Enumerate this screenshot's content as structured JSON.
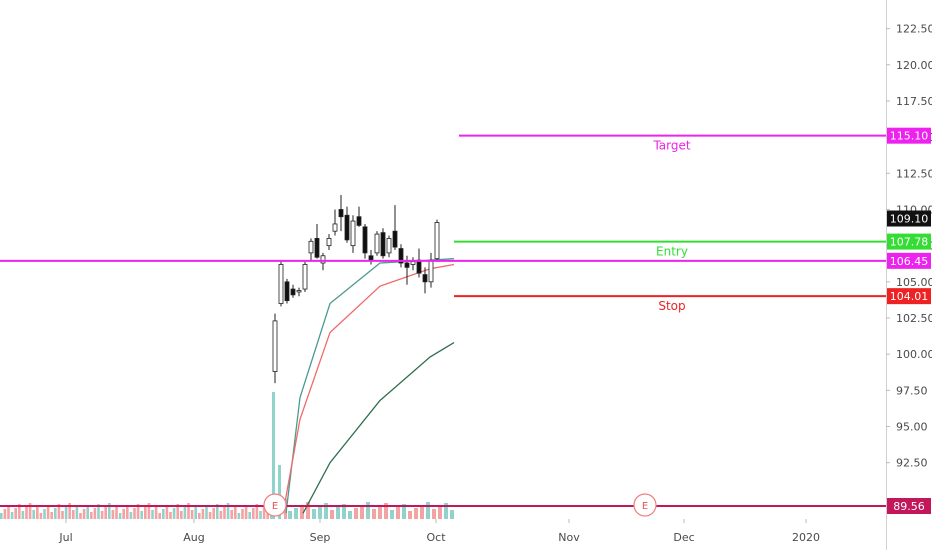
{
  "chart_data": {
    "type": "candlestick",
    "price_axis": {
      "ticks": [
        "122.50",
        "120.00",
        "117.50",
        "115.00",
        "112.50",
        "110.00",
        "107.50",
        "105.00",
        "102.50",
        "100.00",
        "97.50",
        "95.00",
        "92.50"
      ],
      "range": [
        89.0,
        123.5
      ]
    },
    "time_axis": {
      "ticks": [
        "Jul",
        "Aug",
        "Sep",
        "Oct",
        "Nov",
        "Dec",
        "2020"
      ]
    },
    "candles": [
      {
        "o": 98.8,
        "h": 102.8,
        "l": 98.0,
        "c": 102.3
      },
      {
        "o": 103.5,
        "h": 106.4,
        "l": 103.3,
        "c": 106.2
      },
      {
        "o": 105.0,
        "h": 105.2,
        "l": 103.5,
        "c": 103.7
      },
      {
        "o": 104.5,
        "h": 104.8,
        "l": 103.9,
        "c": 104.1
      },
      {
        "o": 104.3,
        "h": 104.6,
        "l": 104.0,
        "c": 104.4
      },
      {
        "o": 104.5,
        "h": 106.4,
        "l": 104.3,
        "c": 106.2
      },
      {
        "o": 107.0,
        "h": 108.0,
        "l": 106.5,
        "c": 107.8
      },
      {
        "o": 108.0,
        "h": 109.0,
        "l": 106.6,
        "c": 106.7
      },
      {
        "o": 106.3,
        "h": 107.0,
        "l": 105.8,
        "c": 106.8
      },
      {
        "o": 107.5,
        "h": 108.3,
        "l": 107.2,
        "c": 108.0
      },
      {
        "o": 108.5,
        "h": 110.0,
        "l": 108.2,
        "c": 109.0
      },
      {
        "o": 110.0,
        "h": 111.0,
        "l": 108.5,
        "c": 109.5
      },
      {
        "o": 109.6,
        "h": 110.2,
        "l": 107.7,
        "c": 107.9
      },
      {
        "o": 107.5,
        "h": 109.6,
        "l": 107.0,
        "c": 109.2
      },
      {
        "o": 109.5,
        "h": 110.2,
        "l": 108.8,
        "c": 108.9
      },
      {
        "o": 108.8,
        "h": 109.0,
        "l": 106.6,
        "c": 107.0
      },
      {
        "o": 106.8,
        "h": 107.2,
        "l": 106.2,
        "c": 106.5
      },
      {
        "o": 107.0,
        "h": 108.5,
        "l": 106.8,
        "c": 108.3
      },
      {
        "o": 108.4,
        "h": 108.7,
        "l": 106.6,
        "c": 106.8
      },
      {
        "o": 107.0,
        "h": 108.2,
        "l": 106.7,
        "c": 108.0
      },
      {
        "o": 108.5,
        "h": 110.3,
        "l": 107.2,
        "c": 107.4
      },
      {
        "o": 107.3,
        "h": 107.6,
        "l": 106.0,
        "c": 106.3
      },
      {
        "o": 106.3,
        "h": 106.8,
        "l": 104.8,
        "c": 106.0
      },
      {
        "o": 106.2,
        "h": 106.7,
        "l": 105.8,
        "c": 106.4
      },
      {
        "o": 106.5,
        "h": 107.3,
        "l": 105.3,
        "c": 105.6
      },
      {
        "o": 105.5,
        "h": 106.0,
        "l": 104.2,
        "c": 105.0
      },
      {
        "o": 105.0,
        "h": 107.0,
        "l": 104.6,
        "c": 106.5
      },
      {
        "o": 106.6,
        "h": 109.3,
        "l": 106.4,
        "c": 109.1
      }
    ],
    "volume_colors": {
      "up": "#8fd3cc",
      "down": "#f4a3a3"
    },
    "moving_averages": [
      {
        "color": "#4a9a8f",
        "points": [
          [
            97.0,
            89.0
          ],
          [
            102.5,
            99.0
          ],
          [
            106.0,
            105.0
          ],
          [
            106.8,
            106.3
          ],
          [
            107.0,
            106.5
          ]
        ]
      },
      {
        "color": "#f06a6a",
        "points": [
          [
            92.0,
            89.0
          ],
          [
            98.0,
            100.5
          ],
          [
            104.0,
            105.3
          ],
          [
            105.8,
            106.0
          ],
          [
            106.2,
            106.2
          ]
        ]
      },
      {
        "color": "#2f6e4f",
        "points": [
          [
            89.0,
            89.0
          ],
          [
            95.0,
            97.0
          ],
          [
            99.0,
            100.0
          ],
          [
            100.8,
            100.8
          ]
        ]
      }
    ],
    "levels": [
      {
        "name": "target",
        "label": "Target",
        "value": 115.1,
        "tag": "115.10",
        "color": "#ee22ee",
        "tag_color": "#ee22ee"
      },
      {
        "name": "entry",
        "label": "Entry",
        "value": 107.78,
        "tag": "107.78",
        "color": "#33dd33",
        "tag_color": "#33dd33"
      },
      {
        "name": "stop",
        "label": "Stop",
        "value": 104.01,
        "tag": "104.01",
        "color": "#ee2222",
        "tag_color": "#ee2222"
      }
    ],
    "horizontal_line": {
      "value": 106.45,
      "tag": "106.45",
      "color": "#ee22ee"
    },
    "last_price": {
      "tag": "109.10",
      "color": "#111111"
    },
    "baseline": {
      "value": 89.56,
      "tag": "89.56",
      "color": "#c2185b"
    },
    "earnings_markers": [
      "E",
      "E"
    ],
    "grid": false
  }
}
